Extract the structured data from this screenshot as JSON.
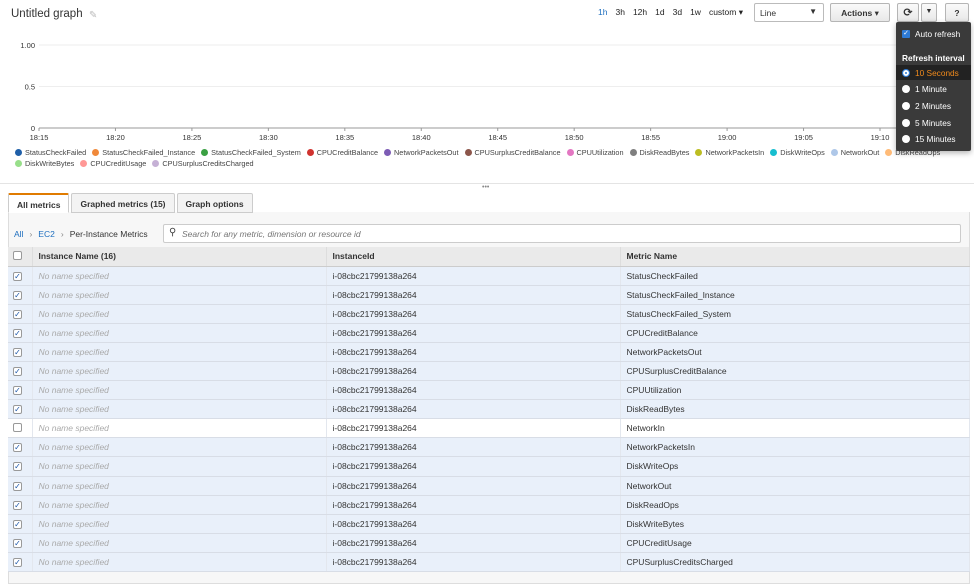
{
  "header": {
    "title": "Untitled graph",
    "ranges": [
      "1h",
      "3h",
      "12h",
      "1d",
      "3d",
      "1w",
      "custom ▾"
    ],
    "active_range": "1h",
    "chart_type": "Line",
    "actions_label": "Actions",
    "help_label": "?"
  },
  "chart_data": {
    "type": "line",
    "y_ticks": [
      "1.00",
      "0.5",
      "0"
    ],
    "ylim": [
      0,
      1
    ],
    "x_ticks": [
      "18:15",
      "18:20",
      "18:25",
      "18:30",
      "18:35",
      "18:40",
      "18:45",
      "18:50",
      "18:55",
      "19:00",
      "19:05",
      "19:10"
    ],
    "series": [],
    "legend": [
      {
        "name": "StatusCheckFailed",
        "color": "#1f5fa8"
      },
      {
        "name": "StatusCheckFailed_Instance",
        "color": "#f0893a"
      },
      {
        "name": "StatusCheckFailed_System",
        "color": "#3aa043"
      },
      {
        "name": "CPUCreditBalance",
        "color": "#d0332f"
      },
      {
        "name": "NetworkPacketsOut",
        "color": "#7d5cb5"
      },
      {
        "name": "CPUSurplusCreditBalance",
        "color": "#8c564b"
      },
      {
        "name": "CPUUtilization",
        "color": "#e377c2"
      },
      {
        "name": "DiskReadBytes",
        "color": "#7f7f7f"
      },
      {
        "name": "NetworkPacketsIn",
        "color": "#bcbd22"
      },
      {
        "name": "DiskWriteOps",
        "color": "#17becf"
      },
      {
        "name": "NetworkOut",
        "color": "#aec7e8"
      },
      {
        "name": "DiskReadOps",
        "color": "#ffbb78"
      },
      {
        "name": "DiskWriteBytes",
        "color": "#98df8a"
      },
      {
        "name": "CPUCreditUsage",
        "color": "#ff9896"
      },
      {
        "name": "CPUSurplusCreditsCharged",
        "color": "#c5b0d5"
      }
    ]
  },
  "tabs": [
    {
      "label": "All metrics",
      "active": true
    },
    {
      "label": "Graphed metrics (15)",
      "active": false
    },
    {
      "label": "Graph options",
      "active": false
    }
  ],
  "breadcrumb": {
    "all": "All",
    "ec2": "EC2",
    "current": "Per-Instance Metrics"
  },
  "search": {
    "placeholder": "Search for any metric, dimension or resource id"
  },
  "table": {
    "headers": [
      "Instance Name (16)",
      "InstanceId",
      "Metric Name"
    ],
    "rows": [
      {
        "name": "No name specified",
        "instance": "i-08cbc21799138a264",
        "metric": "StatusCheckFailed",
        "checked": true
      },
      {
        "name": "No name specified",
        "instance": "i-08cbc21799138a264",
        "metric": "StatusCheckFailed_Instance",
        "checked": true
      },
      {
        "name": "No name specified",
        "instance": "i-08cbc21799138a264",
        "metric": "StatusCheckFailed_System",
        "checked": true
      },
      {
        "name": "No name specified",
        "instance": "i-08cbc21799138a264",
        "metric": "CPUCreditBalance",
        "checked": true
      },
      {
        "name": "No name specified",
        "instance": "i-08cbc21799138a264",
        "metric": "NetworkPacketsOut",
        "checked": true
      },
      {
        "name": "No name specified",
        "instance": "i-08cbc21799138a264",
        "metric": "CPUSurplusCreditBalance",
        "checked": true
      },
      {
        "name": "No name specified",
        "instance": "i-08cbc21799138a264",
        "metric": "CPUUtilization",
        "checked": true
      },
      {
        "name": "No name specified",
        "instance": "i-08cbc21799138a264",
        "metric": "DiskReadBytes",
        "checked": true
      },
      {
        "name": "No name specified",
        "instance": "i-08cbc21799138a264",
        "metric": "NetworkIn",
        "checked": false
      },
      {
        "name": "No name specified",
        "instance": "i-08cbc21799138a264",
        "metric": "NetworkPacketsIn",
        "checked": true
      },
      {
        "name": "No name specified",
        "instance": "i-08cbc21799138a264",
        "metric": "DiskWriteOps",
        "checked": true
      },
      {
        "name": "No name specified",
        "instance": "i-08cbc21799138a264",
        "metric": "NetworkOut",
        "checked": true
      },
      {
        "name": "No name specified",
        "instance": "i-08cbc21799138a264",
        "metric": "DiskReadOps",
        "checked": true
      },
      {
        "name": "No name specified",
        "instance": "i-08cbc21799138a264",
        "metric": "DiskWriteBytes",
        "checked": true
      },
      {
        "name": "No name specified",
        "instance": "i-08cbc21799138a264",
        "metric": "CPUCreditUsage",
        "checked": true
      },
      {
        "name": "No name specified",
        "instance": "i-08cbc21799138a264",
        "metric": "CPUSurplusCreditsCharged",
        "checked": true
      }
    ]
  },
  "refresh_menu": {
    "auto_refresh": "Auto refresh",
    "interval_heading": "Refresh interval",
    "options": [
      "10 Seconds",
      "1 Minute",
      "2 Minutes",
      "5 Minutes",
      "15 Minutes"
    ],
    "selected": "10 Seconds"
  }
}
